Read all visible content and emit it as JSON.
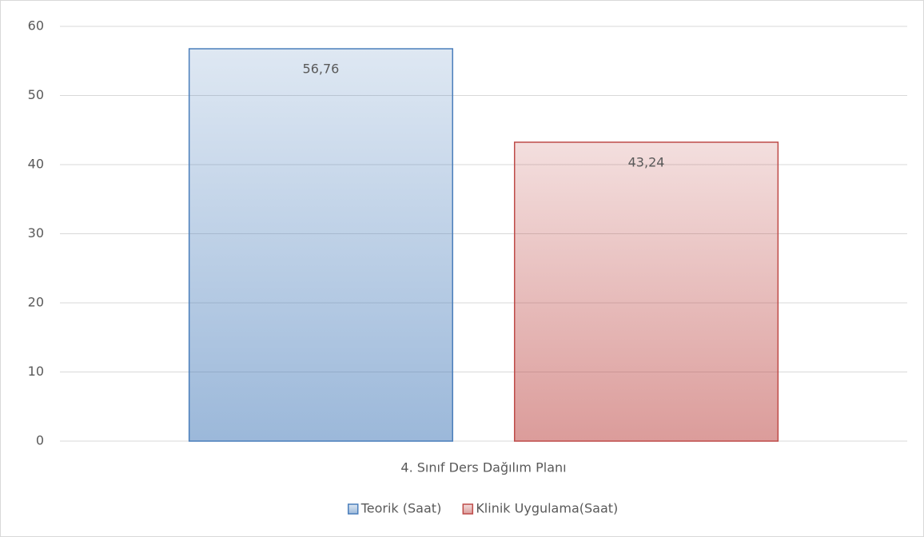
{
  "chart_data": {
    "type": "bar",
    "categories": [
      "4. Sınıf Ders Dağılım Planı"
    ],
    "series": [
      {
        "name": "Teorik (Saat)",
        "color": "#4a7ebb",
        "values": [
          56.76
        ],
        "value_labels": [
          "56,76"
        ]
      },
      {
        "name": "Klinik Uygulama(Saat)",
        "color": "#be4b48",
        "values": [
          43.24
        ],
        "value_labels": [
          "43,24"
        ]
      }
    ],
    "ylim": [
      0,
      60
    ],
    "yticks": [
      0,
      10,
      20,
      30,
      40,
      50,
      60
    ],
    "grid": true,
    "legend": "bottom"
  }
}
